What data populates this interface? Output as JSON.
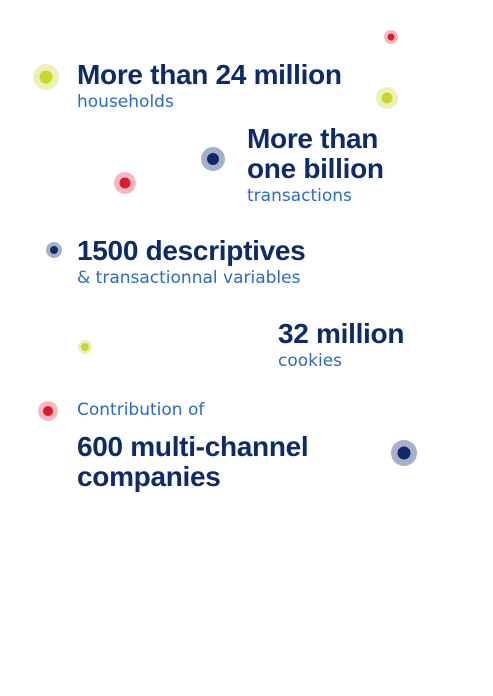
{
  "stats": [
    {
      "headline": "More than 24 million",
      "caption": "households"
    },
    {
      "headline": "More than one billion",
      "caption": "transactions"
    },
    {
      "headline": "1500 descriptives",
      "caption": "& transactionnal variables"
    },
    {
      "headline": "32 million",
      "caption": "cookies"
    },
    {
      "headline": "600 multi-channel companies",
      "caption": "Contribution of"
    }
  ],
  "colors": {
    "headline": "#0d2a6b",
    "caption": "#2a6bc4",
    "dot_yellow": "#c9d62a",
    "dot_red": "#e01a2a",
    "dot_navy": "#0d2a6b"
  }
}
